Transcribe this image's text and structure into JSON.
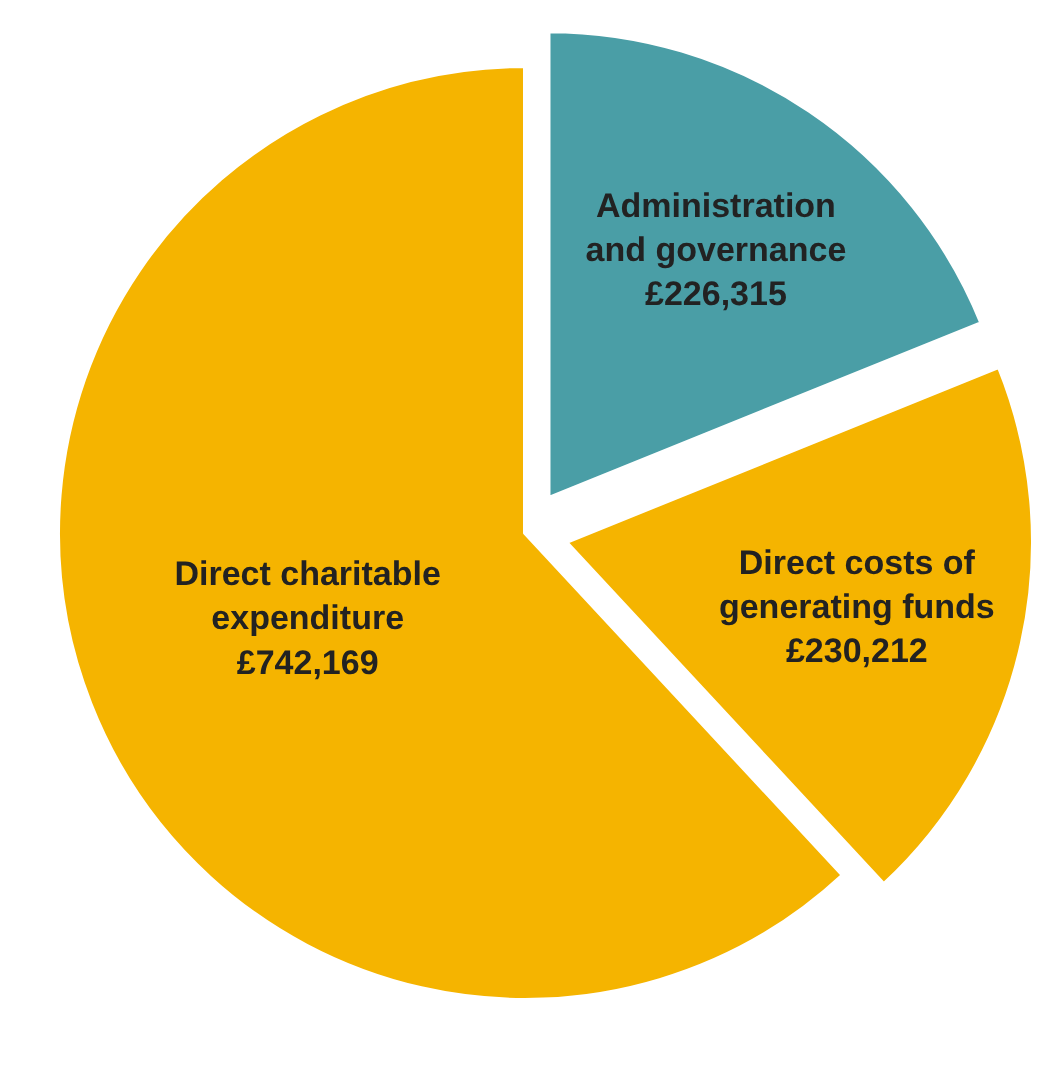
{
  "chart_data": {
    "type": "pie",
    "categories": [
      "Administration and governance",
      "Direct costs of generating funds",
      "Direct charitable expenditure"
    ],
    "values": [
      226315,
      230212,
      742169
    ],
    "value_labels": [
      "£226,315",
      "£230,212",
      "£742,169"
    ],
    "colors": [
      "#4a9ea6",
      "#f5b400",
      "#f5b400"
    ],
    "legend": false
  }
}
